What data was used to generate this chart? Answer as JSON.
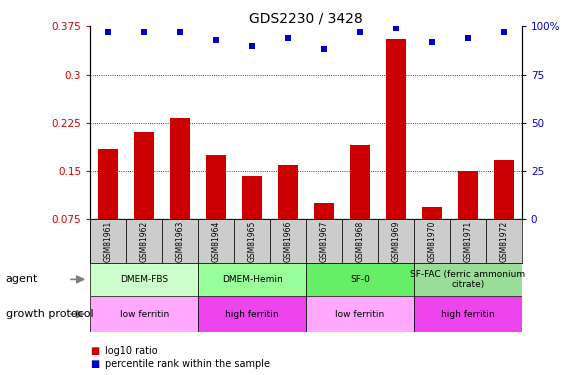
{
  "title": "GDS2230 / 3428",
  "samples": [
    "GSM81961",
    "GSM81962",
    "GSM81963",
    "GSM81964",
    "GSM81965",
    "GSM81966",
    "GSM81967",
    "GSM81968",
    "GSM81969",
    "GSM81970",
    "GSM81971",
    "GSM81972"
  ],
  "log10_ratio": [
    0.185,
    0.21,
    0.232,
    0.175,
    0.143,
    0.16,
    0.1,
    0.19,
    0.355,
    0.095,
    0.15,
    0.168
  ],
  "percentile_rank": [
    97,
    97,
    97,
    93,
    90,
    94,
    88,
    97,
    99,
    92,
    94,
    97
  ],
  "bar_color": "#cc0000",
  "dot_color": "#0000cc",
  "ylim_left": [
    0.075,
    0.375
  ],
  "ylim_right": [
    0,
    100
  ],
  "yticks_left": [
    0.075,
    0.15,
    0.225,
    0.3,
    0.375
  ],
  "yticks_right": [
    0,
    25,
    50,
    75,
    100
  ],
  "gridlines": [
    0.15,
    0.225,
    0.3
  ],
  "agent_groups": [
    {
      "label": "DMEM-FBS",
      "start": 0,
      "end": 3,
      "color": "#ccffcc"
    },
    {
      "label": "DMEM-Hemin",
      "start": 3,
      "end": 6,
      "color": "#99ff99"
    },
    {
      "label": "SF-0",
      "start": 6,
      "end": 9,
      "color": "#66ee66"
    },
    {
      "label": "SF-FAC (ferric ammonium\ncitrate)",
      "start": 9,
      "end": 12,
      "color": "#99dd99"
    }
  ],
  "growth_groups": [
    {
      "label": "low ferritin",
      "start": 0,
      "end": 3,
      "color": "#ffaaff"
    },
    {
      "label": "high ferritin",
      "start": 3,
      "end": 6,
      "color": "#ee44ee"
    },
    {
      "label": "low ferritin",
      "start": 6,
      "end": 9,
      "color": "#ffaaff"
    },
    {
      "label": "high ferritin",
      "start": 9,
      "end": 12,
      "color": "#ee44ee"
    }
  ],
  "legend_items": [
    {
      "label": "log10 ratio",
      "color": "#cc0000"
    },
    {
      "label": "percentile rank within the sample",
      "color": "#0000cc"
    }
  ],
  "background_color": "#ffffff",
  "sample_bg_color": "#cccccc"
}
